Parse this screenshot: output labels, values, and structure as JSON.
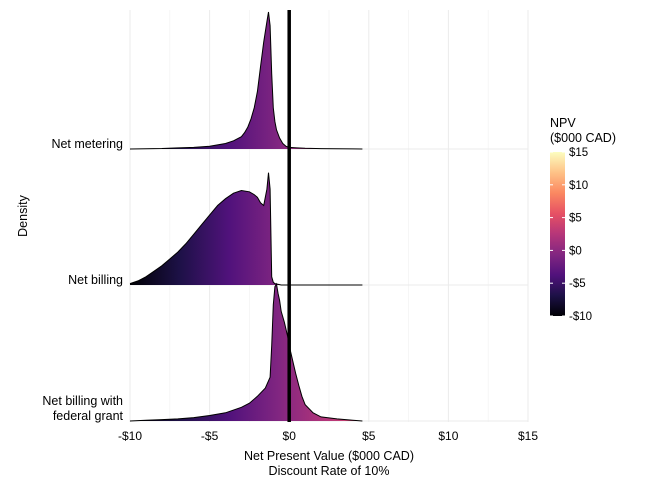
{
  "chart_data": {
    "type": "ridgeline-density",
    "title": "",
    "xlabel": "Net Present Value ($000 CAD)",
    "xlabel_sub": "Discount Rate of 10%",
    "ylabel": "Density",
    "xlim": [
      -10,
      15
    ],
    "x_ticks": [
      -10,
      -5,
      0,
      5,
      10,
      15
    ],
    "x_tick_labels": [
      "-$10",
      "-$5",
      "$0",
      "$5",
      "$10",
      "$15"
    ],
    "reference_line_x": 0,
    "grid": true,
    "categories": [
      "Net metering",
      "Net billing",
      "Net billing with\nfederal grant"
    ],
    "series": [
      {
        "name": "Net metering",
        "x": [
          -10,
          -9,
          -8,
          -7,
          -6,
          -5,
          -4,
          -3.5,
          -3,
          -2.8,
          -2.6,
          -2.4,
          -2.2,
          -2.0,
          -1.8,
          -1.6,
          -1.4,
          -1.3,
          -1.2,
          -1.1,
          -1.0,
          -0.9,
          -0.8,
          -0.6,
          -0.4,
          -0.2,
          0,
          0.5,
          1,
          2,
          3,
          4,
          4.6
        ],
        "density": [
          0.0,
          0.002,
          0.004,
          0.008,
          0.012,
          0.02,
          0.04,
          0.06,
          0.09,
          0.12,
          0.16,
          0.22,
          0.3,
          0.42,
          0.6,
          0.78,
          0.93,
          1.0,
          0.9,
          0.55,
          0.3,
          0.2,
          0.14,
          0.08,
          0.04,
          0.02,
          0.012,
          0.008,
          0.005,
          0.003,
          0.002,
          0.001,
          0.0
        ]
      },
      {
        "name": "Net billing",
        "x": [
          -10,
          -9.5,
          -9,
          -8.5,
          -8,
          -7.5,
          -7,
          -6.5,
          -6,
          -5.5,
          -5,
          -4.5,
          -4,
          -3.5,
          -3,
          -2.5,
          -2.2,
          -2.0,
          -1.8,
          -1.6,
          -1.4,
          -1.3,
          -1.2,
          -1.1,
          -1.0,
          -0.9,
          -0.5,
          0,
          1,
          2,
          3,
          4,
          4.6
        ],
        "density": [
          0.01,
          0.03,
          0.06,
          0.1,
          0.14,
          0.19,
          0.24,
          0.3,
          0.37,
          0.44,
          0.51,
          0.58,
          0.63,
          0.67,
          0.69,
          0.68,
          0.66,
          0.64,
          0.6,
          0.58,
          0.7,
          0.82,
          0.7,
          0.06,
          0.02,
          0.01,
          0.0,
          0.0,
          0.0,
          0.0,
          0.0,
          0.0,
          0.0
        ]
      },
      {
        "name": "Net billing with\nfederal grant",
        "x": [
          -10,
          -9,
          -8,
          -7,
          -6,
          -5,
          -4,
          -3,
          -2.5,
          -2.0,
          -1.5,
          -1.2,
          -1.1,
          -1.0,
          -0.9,
          -0.8,
          -0.7,
          -0.6,
          -0.5,
          -0.3,
          -0.1,
          0,
          0.2,
          0.4,
          0.6,
          0.8,
          1.0,
          1.5,
          2,
          3,
          4,
          4.6
        ],
        "density": [
          0.0,
          0.005,
          0.01,
          0.015,
          0.025,
          0.04,
          0.06,
          0.1,
          0.13,
          0.18,
          0.24,
          0.32,
          0.55,
          0.85,
          0.98,
          1.0,
          0.93,
          0.88,
          0.8,
          0.72,
          0.62,
          0.55,
          0.45,
          0.35,
          0.26,
          0.18,
          0.12,
          0.06,
          0.03,
          0.015,
          0.005,
          0.0
        ]
      }
    ],
    "legend": {
      "title": "NPV\n($000 CAD)",
      "position": "right",
      "ticks": [
        15,
        10,
        5,
        0,
        -5,
        -10
      ],
      "tick_labels": [
        "$15",
        "$10",
        "$5",
        "$0",
        "-$5",
        "-$10"
      ],
      "colormap": "magma",
      "colors": [
        "#000004",
        "#1d1147",
        "#51127c",
        "#822681",
        "#b63679",
        "#e65164",
        "#fb8861",
        "#fec287",
        "#fcfdbf"
      ]
    }
  }
}
